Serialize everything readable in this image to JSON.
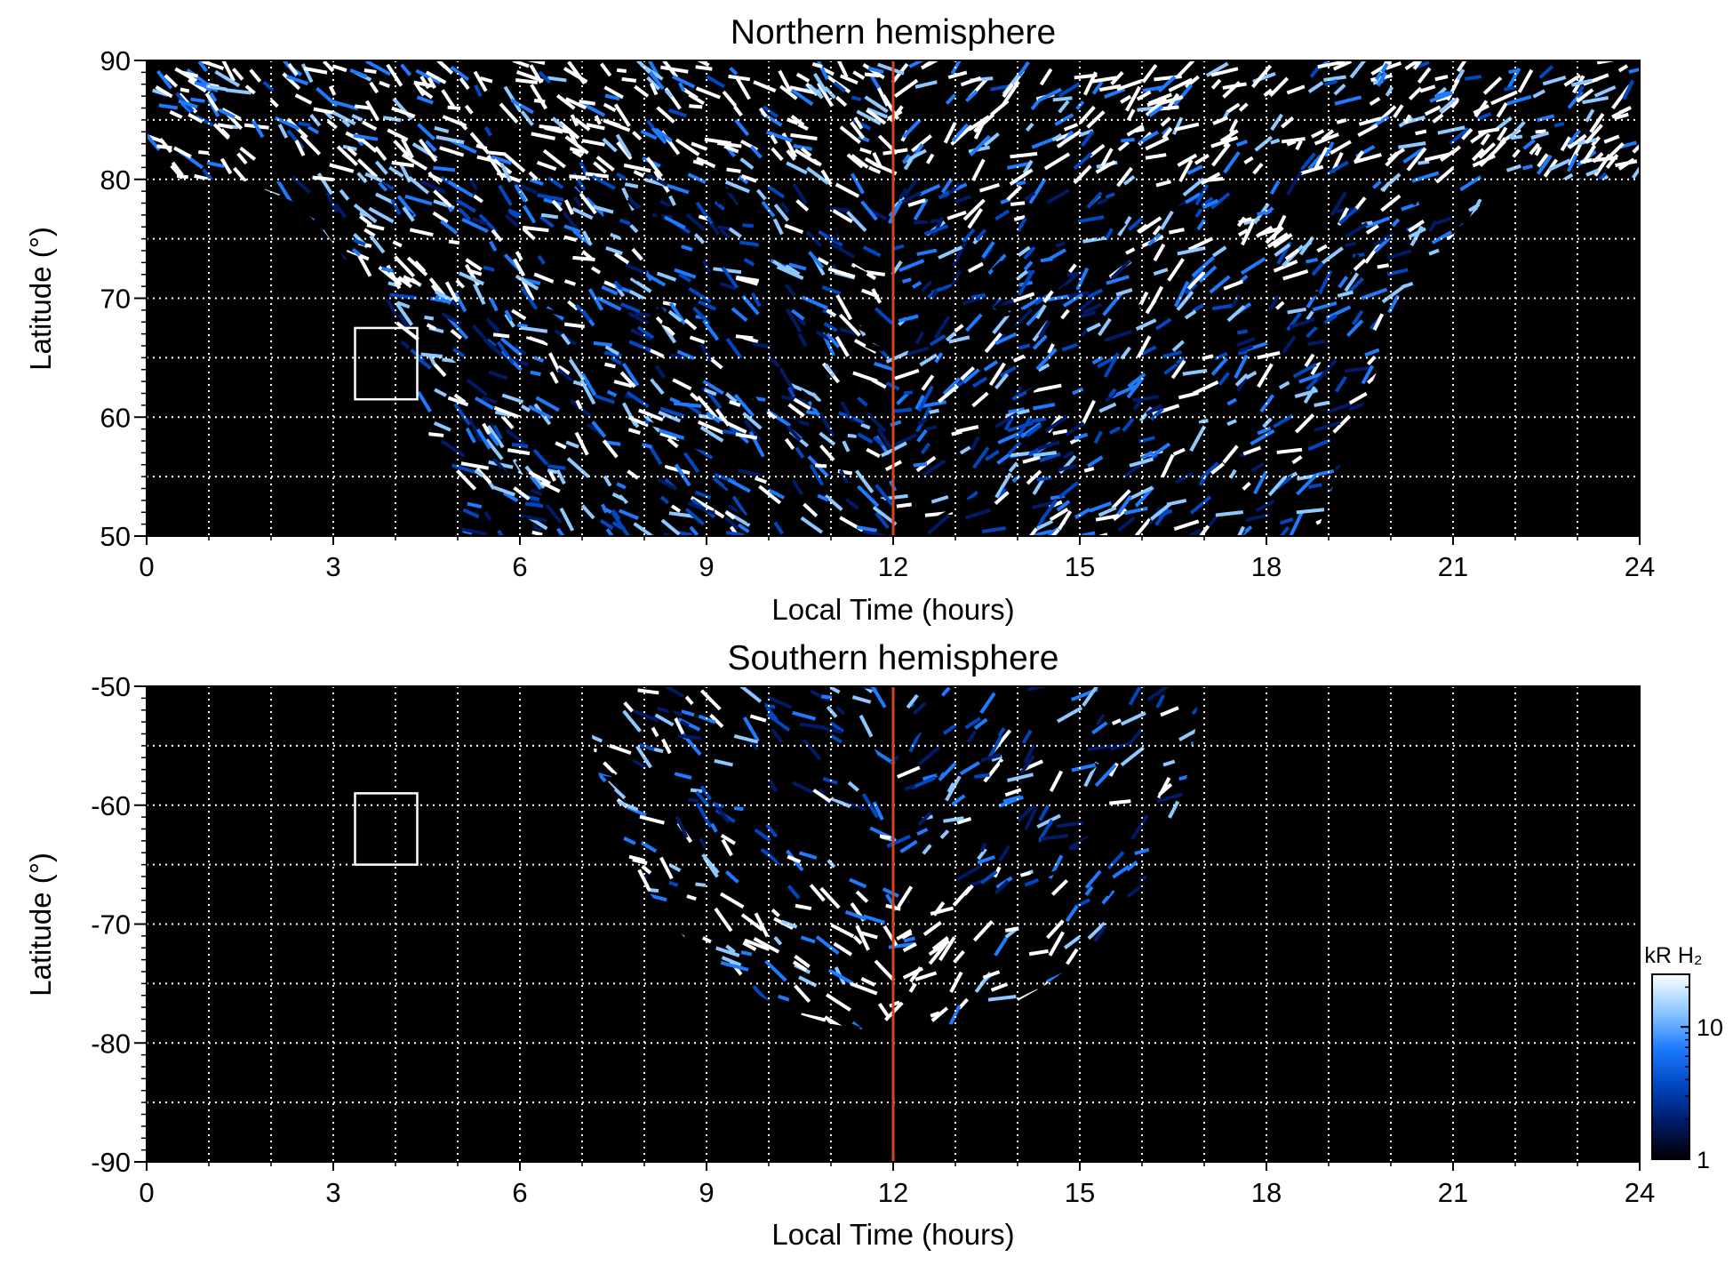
{
  "colors": {
    "background": "#000000",
    "grid": "#ffffff",
    "noon_line": "#d2461e",
    "colormap": [
      "#000000",
      "#001a66",
      "#0047c2",
      "#1e7bff",
      "#8ec8ff",
      "#ffffff"
    ],
    "box": "#ffffff"
  },
  "chart_data": [
    {
      "type": "heatmap",
      "title": "Northern hemisphere",
      "xlabel": "Local Time (hours)",
      "ylabel": "Latitude (°)",
      "xlim": [
        0,
        24
      ],
      "ylim": [
        50,
        90
      ],
      "xticks": [
        "0",
        "3",
        "6",
        "9",
        "12",
        "15",
        "18",
        "21",
        "24"
      ],
      "yticks": [
        "50",
        "60",
        "70",
        "80",
        "90"
      ],
      "grid": true,
      "grid_x_step": 1,
      "grid_y_step": 5,
      "noon_line_x": 12,
      "marked_box": {
        "lt": [
          3.35,
          4.35
        ],
        "lat": [
          61.5,
          67.5
        ]
      },
      "coverage_note": "emission mapped over all local times poleward of 80°, narrowing to 5–19 h at 50°",
      "bright_features": [
        {
          "lt_range": [
            3.5,
            7.5
          ],
          "lat_range": [
            71,
            76
          ],
          "level_kR": 20
        },
        {
          "lt_range": [
            0,
            24
          ],
          "lat_range": [
            80,
            90
          ],
          "level_kR": 15
        },
        {
          "lt_range": [
            16,
            19
          ],
          "lat_range": [
            71,
            77
          ],
          "level_kR": 18
        }
      ]
    },
    {
      "type": "heatmap",
      "title": "Southern hemisphere",
      "xlabel": "Local Time (hours)",
      "ylabel": "Latitude (°)",
      "xlim": [
        0,
        24
      ],
      "ylim": [
        -90,
        -50
      ],
      "xticks": [
        "0",
        "3",
        "6",
        "9",
        "12",
        "15",
        "18",
        "21",
        "24"
      ],
      "yticks": [
        "-50",
        "-60",
        "-70",
        "-80",
        "-90"
      ],
      "grid": true,
      "grid_x_step": 1,
      "grid_y_step": 5,
      "noon_line_x": 12,
      "marked_box": {
        "lt": [
          3.35,
          4.35
        ],
        "lat": [
          -65,
          -59
        ]
      },
      "coverage_note": "emission mapped within an arc from ~7 h to ~17 h, reaching -79° near noon",
      "bright_features": [
        {
          "lt_range": [
            8.2,
            10.0
          ],
          "lat_range": [
            -72,
            -66
          ],
          "level_kR": 25
        },
        {
          "lt_range": [
            9,
            15
          ],
          "lat_range": [
            -78,
            -67
          ],
          "level_kR": 8
        }
      ]
    }
  ],
  "colorbar": {
    "label": "kR H₂",
    "scale": "log",
    "range": [
      1,
      25
    ],
    "ticks": [
      "1",
      "10"
    ],
    "position": "right"
  }
}
